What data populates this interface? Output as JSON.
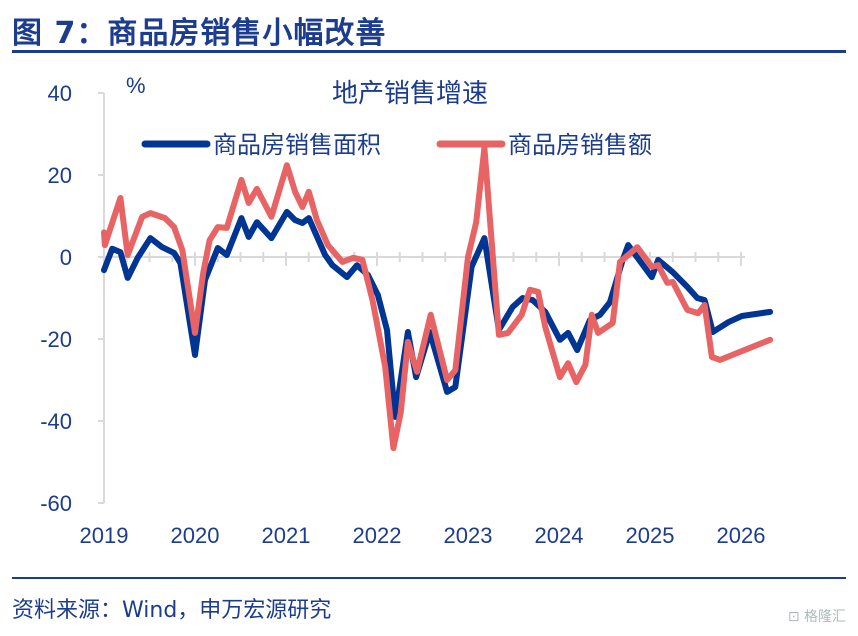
{
  "figure_title": "图 7：商品房销售小幅改善",
  "source": "资料来源：Wind，申万宏源研究",
  "watermark": "格隆汇",
  "colors": {
    "title": "#1b3c8f",
    "area": "#003594",
    "amount": "#e86363",
    "grid": "#d9d9d9"
  },
  "chart_data": {
    "type": "line",
    "title": "地产销售增速",
    "ylabel": "%",
    "ylim": [
      -60,
      40
    ],
    "yticks": [
      40,
      20,
      0,
      -20,
      -40,
      -60
    ],
    "xlim": [
      2019,
      2026
    ],
    "xticks": [
      "2019",
      "2020",
      "2021",
      "2022",
      "2023",
      "2024",
      "2025",
      "2026"
    ],
    "grid": false,
    "legend": "top",
    "series": [
      {
        "name": "商品房销售面积",
        "color": "#003594",
        "x": [
          2019.0,
          2019.09,
          2019.18,
          2019.26,
          2019.37,
          2019.51,
          2019.64,
          2019.77,
          2019.84,
          2020.0,
          2020.11,
          2020.25,
          2020.35,
          2020.51,
          2020.59,
          2020.68,
          2020.84,
          2021.01,
          2021.1,
          2021.18,
          2021.25,
          2021.43,
          2021.51,
          2021.67,
          2021.78,
          2021.9,
          2022.01,
          2022.11,
          2022.2,
          2022.34,
          2022.43,
          2022.58,
          2022.77,
          2022.86,
          2023.04,
          2023.18,
          2023.34,
          2023.49,
          2023.6,
          2023.71,
          2023.85,
          2024.01,
          2024.1,
          2024.2,
          2024.34,
          2024.45,
          2024.56,
          2024.7,
          2024.76,
          2025.02,
          2025.09,
          2025.25,
          2025.41,
          2025.52,
          2025.6,
          2025.69,
          2025.86,
          2026.01,
          2026.32
        ],
        "y": [
          -3.2,
          2.0,
          1.2,
          -5.1,
          -0.2,
          4.6,
          2.4,
          1.0,
          -1.5,
          -23.9,
          -5.6,
          2.2,
          0.5,
          9.5,
          4.9,
          8.5,
          4.6,
          11.0,
          9.0,
          8.3,
          9.5,
          0.5,
          -2.0,
          -4.9,
          -2.0,
          -4.4,
          -9.3,
          -17.8,
          -39.0,
          -18.3,
          -29.3,
          -18.3,
          -32.9,
          -31.7,
          -2.4,
          4.6,
          -17.8,
          -12.2,
          -10.0,
          -10.5,
          -13.4,
          -20.2,
          -18.5,
          -22.7,
          -15.4,
          -14.1,
          -11.0,
          -0.7,
          2.9,
          -4.9,
          -0.7,
          -3.7,
          -7.3,
          -10.0,
          -10.5,
          -18.3,
          -15.9,
          -14.4,
          -13.4
        ]
      },
      {
        "name": "商品房销售额",
        "color": "#e86363",
        "x": [
          2019.0,
          2019.01,
          2019.18,
          2019.26,
          2019.42,
          2019.51,
          2019.67,
          2019.77,
          2019.86,
          2020.0,
          2020.09,
          2020.16,
          2020.25,
          2020.35,
          2020.51,
          2020.59,
          2020.68,
          2020.84,
          2021.01,
          2021.1,
          2021.18,
          2021.25,
          2021.34,
          2021.46,
          2021.62,
          2021.74,
          2021.84,
          2021.95,
          2022.09,
          2022.18,
          2022.26,
          2022.34,
          2022.44,
          2022.59,
          2022.77,
          2022.86,
          2023.0,
          2023.09,
          2023.18,
          2023.34,
          2023.44,
          2023.59,
          2023.68,
          2023.77,
          2023.85,
          2024.01,
          2024.1,
          2024.19,
          2024.29,
          2024.36,
          2024.43,
          2024.59,
          2024.67,
          2024.86,
          2025.02,
          2025.09,
          2025.19,
          2025.25,
          2025.41,
          2025.53,
          2025.6,
          2025.68,
          2025.77,
          2026.32
        ],
        "y": [
          6.0,
          2.9,
          14.4,
          0.5,
          9.8,
          10.7,
          9.5,
          7.3,
          1.7,
          -18.5,
          -3.9,
          4.1,
          7.3,
          7.1,
          18.8,
          13.2,
          16.6,
          9.8,
          22.4,
          15.9,
          12.2,
          15.9,
          9.0,
          2.9,
          -1.2,
          -0.2,
          -0.7,
          -10.5,
          -26.8,
          -46.6,
          -38.0,
          -20.7,
          -28.0,
          -14.1,
          -30.0,
          -27.6,
          0.0,
          8.5,
          26.6,
          -19.0,
          -18.5,
          -14.1,
          -8.0,
          -8.5,
          -17.1,
          -29.3,
          -25.9,
          -30.5,
          -26.3,
          -14.1,
          -18.5,
          -16.1,
          -1.2,
          2.4,
          -2.4,
          -2.0,
          -6.3,
          -6.1,
          -12.9,
          -13.7,
          -11.7,
          -24.4,
          -25.1,
          -20.2
        ]
      }
    ]
  }
}
